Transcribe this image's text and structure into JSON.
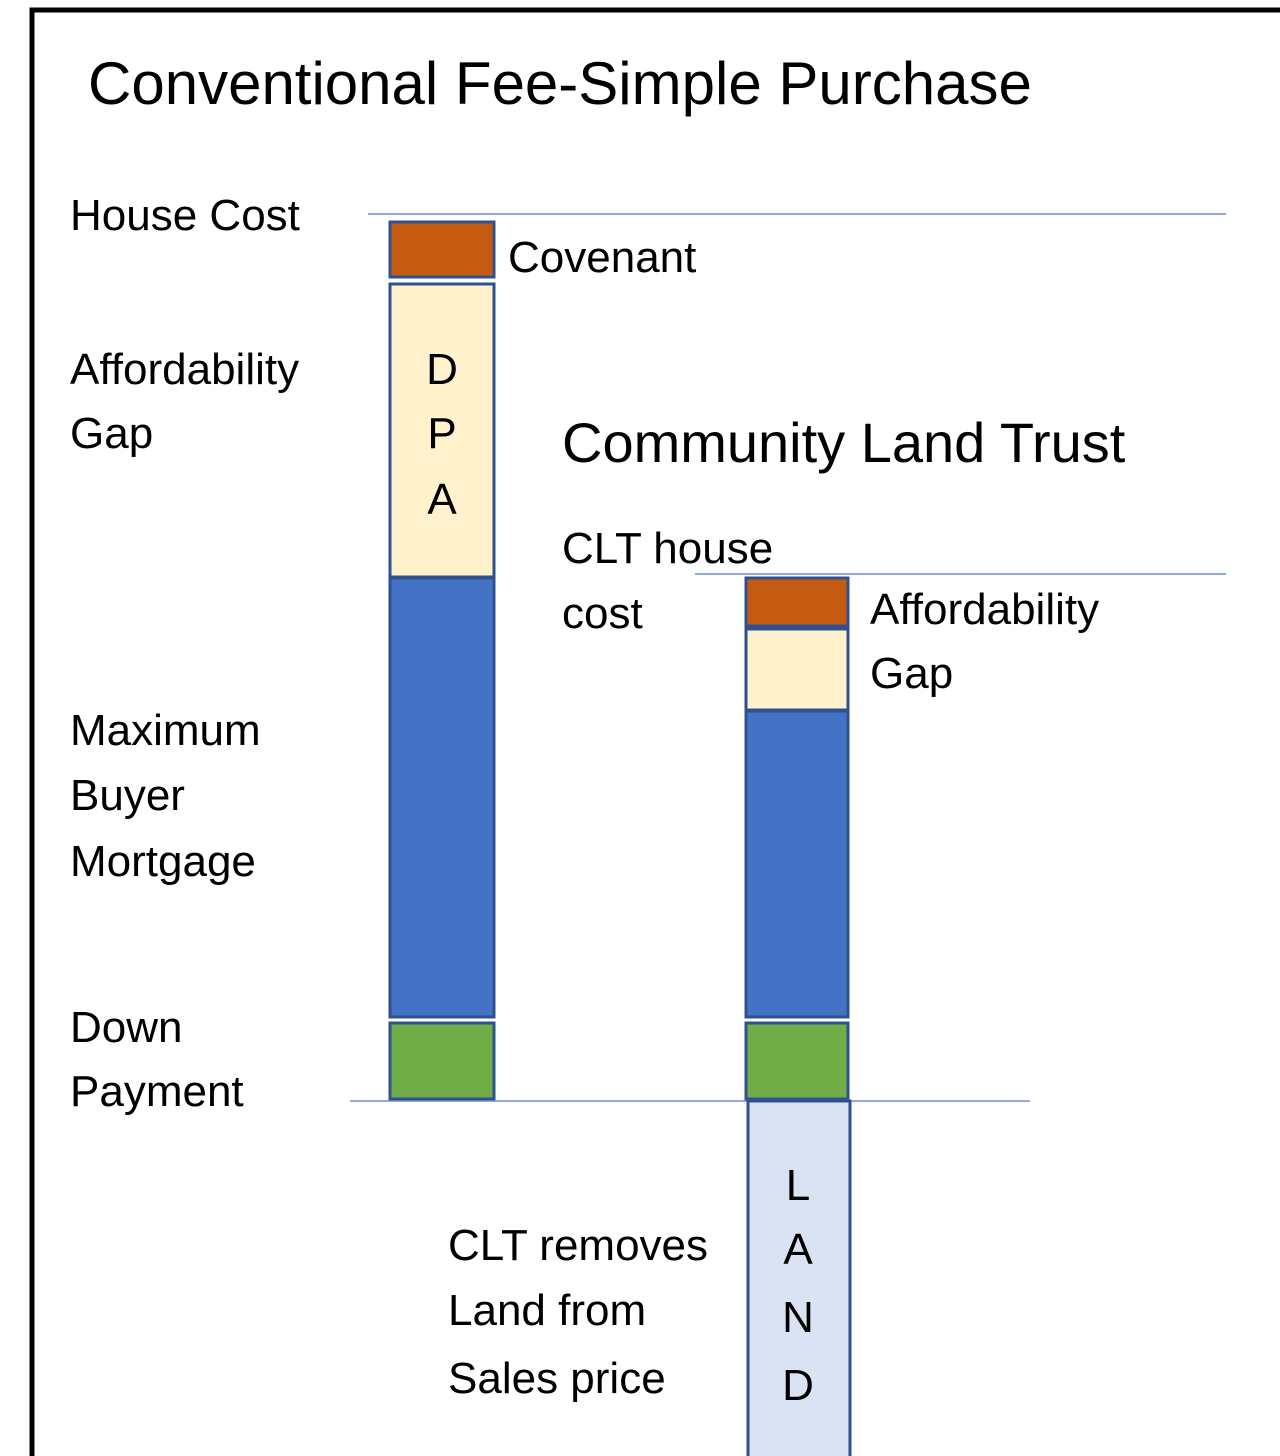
{
  "title": "Conventional Fee-Simple Purchase",
  "conventional": {
    "house_cost": "House Cost",
    "covenant": "Covenant",
    "affordability_gap": [
      "Affordability",
      "Gap"
    ],
    "dpa": [
      "D",
      "P",
      "A"
    ],
    "mortgage": [
      "Maximum",
      "Buyer",
      "Mortgage"
    ],
    "down_payment": [
      "Down",
      "Payment"
    ]
  },
  "clt": {
    "title": "Community Land Trust",
    "house_cost": [
      "CLT house",
      "cost"
    ],
    "affordability_gap": [
      "Affordability",
      "Gap"
    ],
    "removes_land": [
      "CLT removes",
      "Land from",
      "Sales price"
    ],
    "land": [
      "L",
      "A",
      "N",
      "D"
    ]
  }
}
